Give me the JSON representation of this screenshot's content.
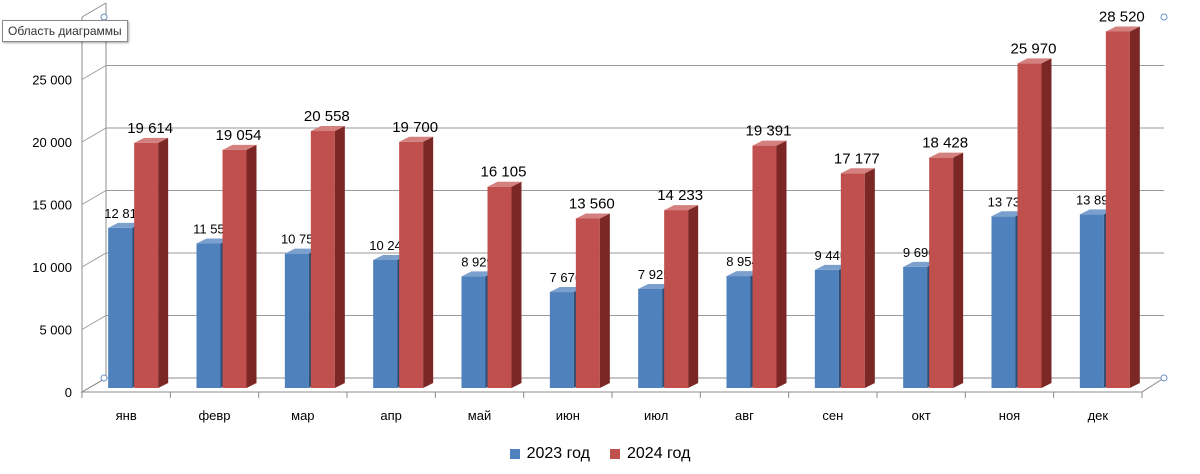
{
  "tooltip": "Область диаграммы",
  "colors": {
    "s2023": "#4f81bd",
    "s2023_side": "#2c4d75",
    "s2023_top": "#7ba0cd",
    "s2024": "#c0504d",
    "s2024_side": "#7a2725",
    "s2024_top": "#d3807e",
    "grid": "#9a9a9a",
    "wall": "#8c8c8c"
  },
  "chart_data": {
    "type": "bar",
    "categories": [
      "янв",
      "февр",
      "мар",
      "апр",
      "май",
      "июн",
      "июл",
      "авг",
      "сен",
      "окт",
      "ноя",
      "дек"
    ],
    "series": [
      {
        "name": "2023 год",
        "values": [
          12812,
          11558,
          10751,
          10242,
          8929,
          7676,
          7925,
          8954,
          9446,
          9690,
          13736,
          13891
        ],
        "labels": [
          "12 812",
          "11 558",
          "10 751",
          "10 242",
          "8 929",
          "7 676",
          "7 925",
          "8 954",
          "9 446",
          "9 690",
          "13 736",
          "13 891"
        ]
      },
      {
        "name": "2024 год",
        "values": [
          19614,
          19054,
          20558,
          19700,
          16105,
          13560,
          14233,
          19391,
          17177,
          18428,
          25970,
          28520
        ],
        "labels": [
          "19 614",
          "19 054",
          "20 558",
          "19 700",
          "16 105",
          "13 560",
          "14 233",
          "19 391",
          "17 177",
          "18 428",
          "25 970",
          "28 520"
        ]
      }
    ],
    "yticks": [
      0,
      5000,
      10000,
      15000,
      20000,
      25000
    ],
    "ytick_labels": [
      "0",
      "5 000",
      "10 000",
      "15 000",
      "20 000",
      "25 000"
    ],
    "ylim": [
      0,
      30000
    ],
    "grid": true,
    "legend_position": "bottom",
    "style": "3d-column"
  }
}
